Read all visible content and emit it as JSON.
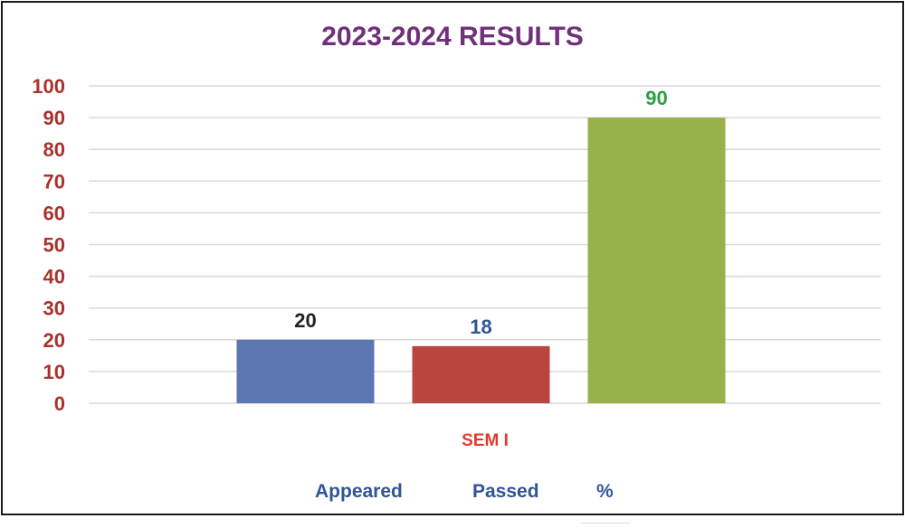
{
  "chart_data": {
    "type": "bar",
    "title": "2023-2024 RESULTS",
    "categories": [
      "SEM I"
    ],
    "series": [
      {
        "name": "Appeared",
        "values": [
          20
        ],
        "color": "#5b76b1",
        "label_color": "#222222"
      },
      {
        "name": "Passed",
        "values": [
          18
        ],
        "color": "#b94541",
        "label_color": "#2f5597"
      },
      {
        "name": "%",
        "values": [
          90
        ],
        "color": "#97b24a",
        "label_color": "#2e9e45"
      }
    ],
    "ylim": [
      0,
      100
    ],
    "yticks": [
      0,
      10,
      20,
      30,
      40,
      50,
      60,
      70,
      80,
      90,
      100
    ],
    "grid": true,
    "legend_position": "bottom",
    "colors": {
      "title": "#70307a",
      "ytick": "#a9322b",
      "category": "#e03a30",
      "legend_text": "#2f5597",
      "gridline": "#d9d9d9"
    }
  }
}
